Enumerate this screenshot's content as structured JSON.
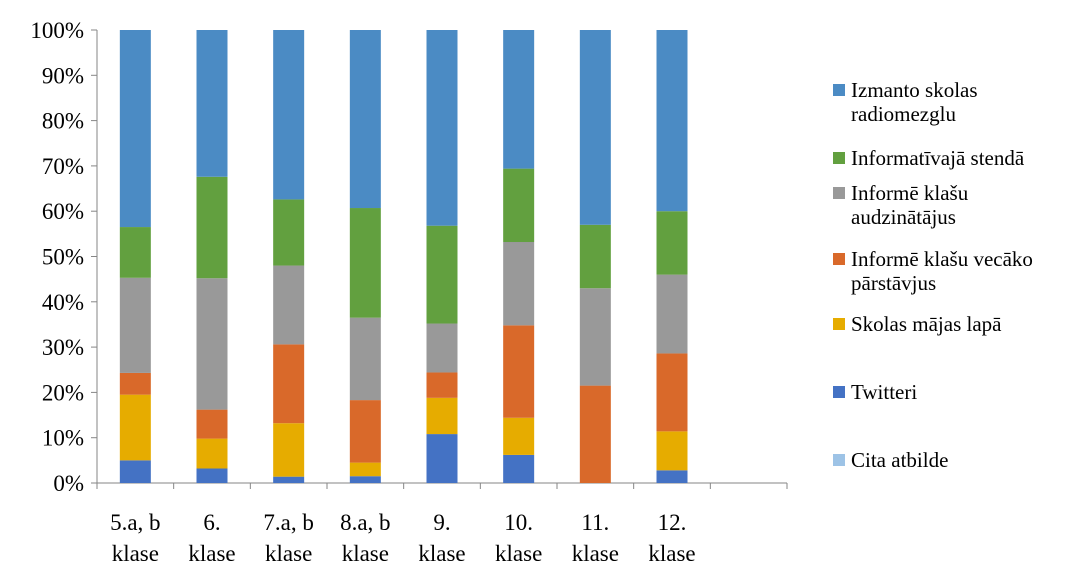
{
  "chart_data": {
    "type": "bar",
    "stacked": "percent",
    "categories": [
      "5.a, b klase",
      "6. klase",
      "7.a, b klase",
      "8.a, b klase",
      "9. klase",
      "10. klase",
      "11. klase",
      "12. klase"
    ],
    "category_lines": [
      [
        "5.a, b",
        "klase"
      ],
      [
        "6.",
        "klase"
      ],
      [
        "7.a, b",
        "klase"
      ],
      [
        "8.a, b",
        "klase"
      ],
      [
        "9.",
        "klase"
      ],
      [
        "10.",
        "klase"
      ],
      [
        "11.",
        "klase"
      ],
      [
        "12.",
        "klase"
      ]
    ],
    "y_ticks": [
      "0%",
      "10%",
      "20%",
      "30%",
      "40%",
      "50%",
      "60%",
      "70%",
      "80%",
      "90%",
      "100%"
    ],
    "ylim": [
      0,
      100
    ],
    "series": [
      {
        "name": "Cita atbilde",
        "color": "#9DC3E6",
        "values": [
          0,
          0,
          0,
          0,
          0,
          0,
          0,
          0
        ]
      },
      {
        "name": "Twitteri",
        "color": "#4472C4",
        "values": [
          5,
          3.2,
          1.4,
          1.5,
          10.8,
          6.2,
          0,
          2.8
        ]
      },
      {
        "name": "Skolas mājas lapā",
        "color": "#E6AC00",
        "values": [
          14.5,
          6.6,
          11.8,
          3,
          8,
          8.2,
          0,
          8.6
        ]
      },
      {
        "name": "Informē klašu vecāko pārstāvjus",
        "color": "#D9692A",
        "values": [
          4.8,
          6.4,
          17.4,
          13.8,
          5.6,
          20.4,
          21.5,
          17.2
        ]
      },
      {
        "name": "Informē klašu audzinātājus",
        "color": "#999999",
        "values": [
          21,
          29,
          17.4,
          18.2,
          10.8,
          18.4,
          21.5,
          17.4
        ]
      },
      {
        "name": "Informatīvajā stendā",
        "color": "#62A03F",
        "values": [
          11.2,
          22.4,
          14.6,
          24.2,
          21.6,
          16.2,
          14,
          14
        ]
      },
      {
        "name": "Izmanto skolas radiomezglu",
        "color": "#4B8BC4",
        "values": [
          43.5,
          32.4,
          37.4,
          39.3,
          43.2,
          30.6,
          43,
          40
        ]
      }
    ],
    "grid": false,
    "legend_position": "right"
  },
  "legend": {
    "items": [
      {
        "label": "Izmanto skolas\nradiomezglu",
        "color": "#4B8BC4"
      },
      {
        "label": "Informatīvajā stendā",
        "color": "#62A03F"
      },
      {
        "label": "Informē klašu\naudzinātājus",
        "color": "#999999"
      },
      {
        "label": "Informē klašu vecāko\npārstāvjus",
        "color": "#D9692A"
      },
      {
        "label": "Skolas mājas lapā",
        "color": "#E6AC00"
      },
      {
        "label": "Twitteri",
        "color": "#4472C4"
      },
      {
        "label": "Cita atbilde",
        "color": "#9DC3E6"
      }
    ]
  }
}
